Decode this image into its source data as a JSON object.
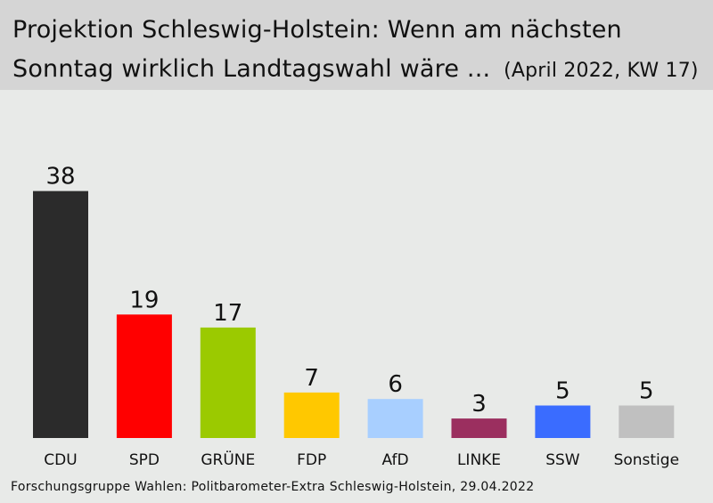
{
  "header": {
    "title_line1": "Projektion Schleswig-Holstein: Wenn am nächsten",
    "title_line2": "Sonntag wirklich Landtagswahl wäre ...",
    "subtitle": "(April 2022, KW 17)"
  },
  "source": "Forschungsgruppe Wahlen: Politbarometer-Extra Schleswig-Holstein, 29.04.2022",
  "chart_data": {
    "type": "bar",
    "title": "Projektion Schleswig-Holstein: Wenn am nächsten Sonntag wirklich Landtagswahl wäre ...",
    "subtitle": "(April 2022, KW 17)",
    "categories": [
      "CDU",
      "SPD",
      "GRÜNE",
      "FDP",
      "AfD",
      "LINKE",
      "SSW",
      "Sonstige"
    ],
    "values": [
      38,
      19,
      17,
      7,
      6,
      3,
      5,
      5
    ],
    "colors": [
      "#2b2b2b",
      "#ff0000",
      "#9bca00",
      "#ffc800",
      "#a8cfff",
      "#9b2f5f",
      "#3a6cff",
      "#c0c0c0"
    ],
    "data_labels": [
      "38",
      "19",
      "17",
      "7",
      "6",
      "3",
      "5",
      "5"
    ],
    "xlabel": "",
    "ylabel": "",
    "grid": false,
    "legend": "none"
  }
}
